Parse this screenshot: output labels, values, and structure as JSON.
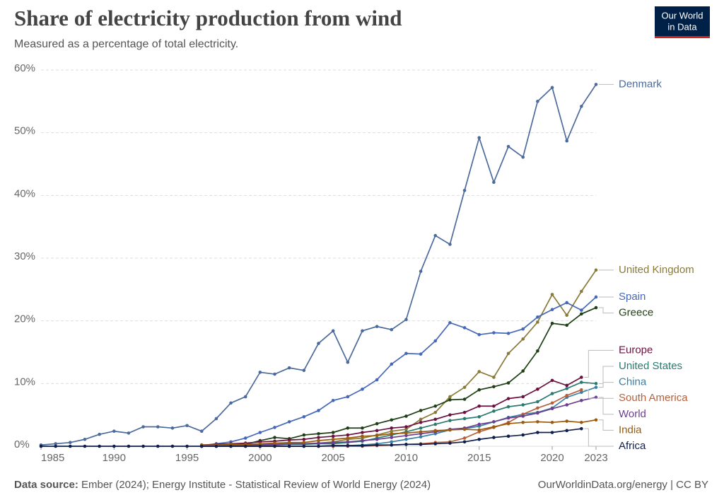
{
  "header": {
    "title": "Share of electricity production from wind",
    "subtitle": "Measured as a percentage of total electricity.",
    "logo": [
      "Our World",
      "in Data"
    ]
  },
  "footer": {
    "source_label": "Data source:",
    "source": "Ember (2024); Energy Institute - Statistical Review of World Energy (2024)",
    "link": "OurWorldinData.org/energy | CC BY"
  },
  "chart_data": {
    "type": "line",
    "grid": true,
    "x": [
      1985,
      1986,
      1987,
      1988,
      1989,
      1990,
      1991,
      1992,
      1993,
      1994,
      1995,
      1996,
      1997,
      1998,
      1999,
      2000,
      2001,
      2002,
      2003,
      2004,
      2005,
      2006,
      2007,
      2008,
      2009,
      2010,
      2011,
      2012,
      2013,
      2014,
      2015,
      2016,
      2017,
      2018,
      2019,
      2020,
      2021,
      2022,
      2023
    ],
    "xlim": [
      1985,
      2023
    ],
    "xticks": [
      1985,
      1990,
      1995,
      2000,
      2005,
      2010,
      2015,
      2020,
      2023
    ],
    "ylim": [
      0,
      60
    ],
    "yticks": [
      {
        "value": 0,
        "label": "0%"
      },
      {
        "value": 10,
        "label": "10%"
      },
      {
        "value": 20,
        "label": "20%"
      },
      {
        "value": 30,
        "label": "30%"
      },
      {
        "value": 40,
        "label": "40%"
      },
      {
        "value": 50,
        "label": "50%"
      },
      {
        "value": 60,
        "label": "60%"
      }
    ],
    "series": [
      {
        "name": "Denmark",
        "color": "#4c6a9c",
        "values": [
          0.2,
          0.4,
          0.6,
          1.1,
          1.9,
          2.4,
          2.1,
          3.1,
          3.1,
          2.9,
          3.3,
          2.4,
          4.4,
          6.9,
          7.9,
          11.8,
          11.5,
          12.5,
          12.1,
          16.4,
          18.4,
          13.4,
          18.4,
          19.1,
          18.6,
          20.2,
          27.9,
          33.6,
          32.2,
          40.8,
          49.2,
          42.1,
          47.8,
          46.1,
          55.0,
          57.2,
          48.7,
          54.2,
          57.7
        ]
      },
      {
        "name": "United Kingdom",
        "color": "#8a7a38",
        "values": [
          null,
          null,
          null,
          null,
          null,
          null,
          null,
          null,
          null,
          null,
          null,
          0.1,
          0.1,
          0.2,
          0.2,
          0.3,
          0.3,
          0.4,
          0.4,
          0.5,
          0.7,
          1.1,
          1.3,
          1.8,
          2.4,
          2.7,
          4.3,
          5.4,
          7.9,
          9.4,
          11.9,
          11.0,
          14.8,
          17.1,
          19.8,
          24.2,
          20.9,
          24.7,
          28.1
        ]
      },
      {
        "name": "Spain",
        "color": "#4668b8",
        "values": [
          null,
          null,
          null,
          null,
          null,
          null,
          null,
          null,
          null,
          null,
          null,
          0.1,
          0.4,
          0.7,
          1.3,
          2.2,
          3.0,
          3.9,
          4.7,
          5.7,
          7.3,
          7.9,
          9.1,
          10.6,
          13.1,
          14.8,
          14.7,
          16.8,
          19.7,
          18.9,
          17.8,
          18.1,
          18.0,
          18.7,
          20.6,
          21.8,
          22.9,
          21.7,
          23.8
        ]
      },
      {
        "name": "Greece",
        "color": "#1f3f15",
        "values": [
          null,
          null,
          null,
          null,
          null,
          null,
          null,
          null,
          null,
          null,
          null,
          0,
          0,
          0.1,
          0.3,
          0.9,
          1.4,
          1.2,
          1.8,
          2.0,
          2.2,
          2.9,
          2.9,
          3.6,
          4.2,
          4.8,
          5.7,
          6.4,
          7.4,
          7.5,
          9.0,
          9.5,
          10.1,
          12.0,
          15.2,
          19.6,
          19.3,
          21.1,
          22.1
        ]
      },
      {
        "name": "Europe",
        "color": "#6b1141",
        "values": [
          null,
          null,
          null,
          null,
          null,
          null,
          null,
          null,
          null,
          null,
          null,
          0.2,
          0.3,
          0.4,
          0.5,
          0.7,
          0.8,
          1.0,
          1.1,
          1.4,
          1.6,
          1.8,
          2.2,
          2.5,
          2.9,
          3.1,
          3.8,
          4.3,
          5.0,
          5.4,
          6.4,
          6.4,
          7.6,
          7.9,
          9.1,
          10.5,
          9.7,
          11.0,
          null
        ]
      },
      {
        "name": "United States",
        "color": "#2b7a70",
        "values": [
          null,
          null,
          null,
          null,
          null,
          null,
          null,
          null,
          null,
          null,
          null,
          0.1,
          0.1,
          0.1,
          0.1,
          0.1,
          0.2,
          0.3,
          0.3,
          0.4,
          0.4,
          0.6,
          0.8,
          1.3,
          1.8,
          2.3,
          2.9,
          3.5,
          4.1,
          4.4,
          4.7,
          5.6,
          6.3,
          6.6,
          7.1,
          8.4,
          9.2,
          10.2,
          10.0
        ]
      },
      {
        "name": "China",
        "color": "#3a7fa3",
        "values": [
          null,
          null,
          null,
          null,
          null,
          null,
          null,
          null,
          null,
          null,
          null,
          0,
          0,
          0,
          0,
          0,
          0,
          0,
          0,
          0,
          0.1,
          0.1,
          0.2,
          0.4,
          0.7,
          1.1,
          1.5,
          2.0,
          2.6,
          2.8,
          3.2,
          3.9,
          4.6,
          5.1,
          5.4,
          6.1,
          7.8,
          8.6,
          9.4
        ]
      },
      {
        "name": "South America",
        "color": "#b5603c",
        "values": [
          null,
          null,
          null,
          null,
          null,
          null,
          null,
          null,
          null,
          null,
          null,
          0,
          0,
          0,
          0,
          0,
          0,
          0,
          0,
          0,
          0,
          0,
          0,
          0.1,
          0.2,
          0.3,
          0.4,
          0.6,
          0.7,
          1.3,
          2.3,
          3.0,
          3.8,
          5.1,
          6.1,
          6.9,
          8.1,
          9.0,
          null
        ]
      },
      {
        "name": "World",
        "color": "#6c3e91",
        "values": [
          null,
          null,
          null,
          null,
          null,
          null,
          null,
          null,
          null,
          null,
          null,
          0.1,
          0.1,
          0.2,
          0.2,
          0.2,
          0.3,
          0.4,
          0.4,
          0.5,
          0.6,
          0.7,
          0.9,
          1.1,
          1.4,
          1.7,
          2.0,
          2.3,
          2.7,
          2.9,
          3.5,
          3.9,
          4.5,
          4.8,
          5.3,
          6.0,
          6.6,
          7.3,
          7.8
        ]
      },
      {
        "name": "India",
        "color": "#9a5b0c",
        "values": [
          null,
          null,
          null,
          null,
          null,
          null,
          null,
          null,
          null,
          null,
          null,
          0.2,
          0.2,
          0.3,
          0.3,
          0.4,
          0.5,
          0.6,
          0.6,
          0.9,
          1.1,
          1.3,
          1.6,
          1.7,
          2.0,
          2.1,
          2.3,
          2.5,
          2.6,
          2.7,
          2.6,
          3.1,
          3.6,
          3.8,
          3.9,
          3.8,
          4.0,
          3.8,
          4.2
        ]
      },
      {
        "name": "Africa",
        "color": "#0f1e4d",
        "values": [
          0,
          0,
          0,
          0,
          0,
          0,
          0,
          0,
          0,
          0,
          0,
          0,
          0,
          0,
          0,
          0,
          0,
          0,
          0,
          0,
          0.1,
          0.1,
          0.1,
          0.2,
          0.2,
          0.3,
          0.3,
          0.4,
          0.5,
          0.7,
          1.1,
          1.4,
          1.6,
          1.8,
          2.2,
          2.2,
          2.5,
          2.8,
          null
        ]
      }
    ]
  }
}
